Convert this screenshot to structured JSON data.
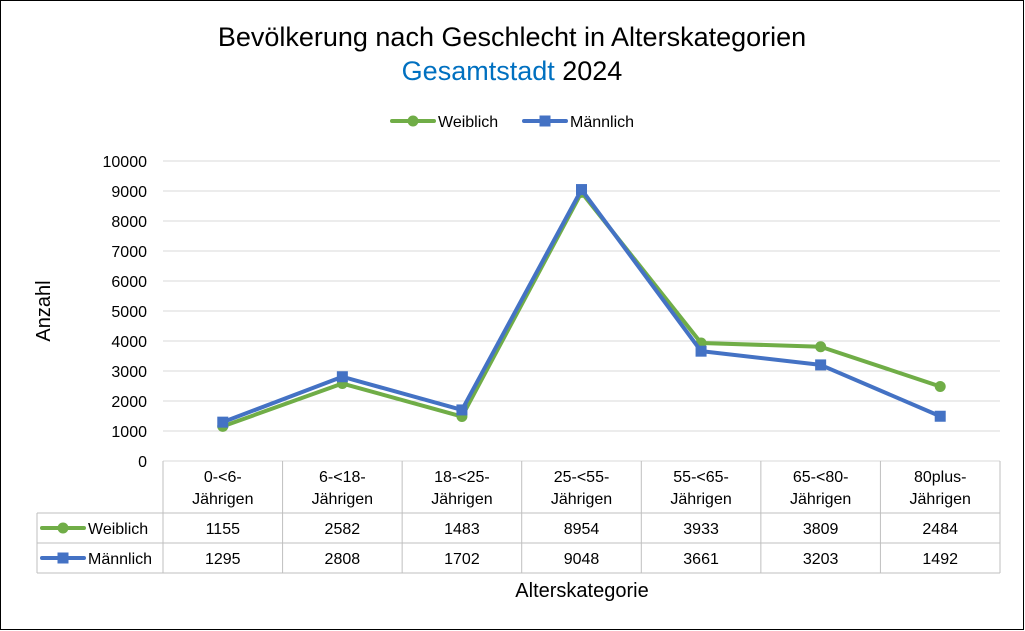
{
  "chart_data": {
    "type": "line",
    "title_line1": "Bevölkerung nach Geschlecht in Alterskategorien",
    "title_line2_highlight": "Gesamtstadt",
    "title_line2_rest": " 2024",
    "xlabel": "Alterskategorie",
    "ylabel": "Anzahl",
    "ylim": [
      0,
      10000
    ],
    "yticks": [
      0,
      1000,
      2000,
      3000,
      4000,
      5000,
      6000,
      7000,
      8000,
      9000,
      10000
    ],
    "categories": [
      [
        "0-<6-",
        "Jährigen"
      ],
      [
        "6-<18-",
        "Jährigen"
      ],
      [
        "18-<25-",
        "Jährigen"
      ],
      [
        "25-<55-",
        "Jährigen"
      ],
      [
        "55-<65-",
        "Jährigen"
      ],
      [
        "65-<80-",
        "Jährigen"
      ],
      [
        "80plus-",
        "Jährigen"
      ]
    ],
    "legend_position": "top",
    "series": [
      {
        "name": "Weiblich",
        "marker": "circle",
        "color": "#70ad47",
        "values": [
          1155,
          2582,
          1483,
          8954,
          3933,
          3809,
          2484
        ]
      },
      {
        "name": "Männlich",
        "marker": "square",
        "color": "#4472c4",
        "values": [
          1295,
          2808,
          1702,
          9048,
          3661,
          3203,
          1492
        ]
      }
    ],
    "highlight_color": "#0070c0"
  }
}
